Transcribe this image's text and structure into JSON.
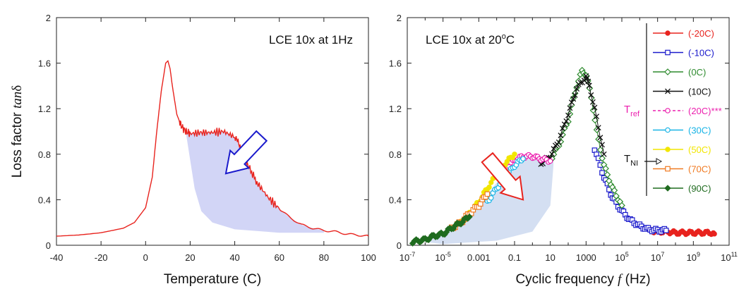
{
  "chart_data": [
    {
      "type": "line",
      "title": "LCE 10x at 1Hz",
      "xlabel": "Temperature (C)",
      "ylabel": "Loss factor tanδ",
      "ylabel_parts": {
        "text": "Loss factor ",
        "italic": "tan",
        "symbol": "δ"
      },
      "xlim": [
        -40,
        100
      ],
      "ylim": [
        0,
        2
      ],
      "x_ticks": [
        -40,
        -20,
        0,
        20,
        40,
        60,
        80,
        100
      ],
      "x_tick_labels": [
        "-40",
        "-20",
        "0",
        "20",
        "40",
        "60",
        "80",
        "100"
      ],
      "y_ticks": [
        0,
        0.4,
        0.8,
        1.2,
        1.6,
        2
      ],
      "y_tick_labels": [
        "0",
        "0.4",
        "0.8",
        "1.2",
        "1.6",
        "2"
      ],
      "series": [
        {
          "color": "#e8231e",
          "x": [
            -40,
            -30,
            -20,
            -10,
            -5,
            0,
            3,
            5,
            7,
            9,
            10,
            11,
            12,
            14,
            16,
            18,
            20,
            25,
            30,
            35,
            40,
            43,
            46,
            50,
            55,
            60,
            65,
            70,
            75,
            80,
            85,
            90,
            95,
            100
          ],
          "y": [
            0.08,
            0.09,
            0.11,
            0.15,
            0.2,
            0.33,
            0.6,
            1.0,
            1.35,
            1.6,
            1.62,
            1.55,
            1.4,
            1.15,
            1.05,
            1.0,
            0.98,
            0.99,
            0.99,
            1.0,
            0.95,
            0.85,
            0.7,
            0.55,
            0.42,
            0.32,
            0.24,
            0.18,
            0.15,
            0.13,
            0.12,
            0.1,
            0.09,
            0.08
          ]
        }
      ],
      "shaded_region": {
        "color": "#cdd0f5",
        "upper_x": [
          18,
          20,
          25,
          30,
          35,
          40,
          43,
          46,
          50,
          55,
          60,
          65,
          70,
          75,
          80
        ],
        "upper_y": [
          1.0,
          0.98,
          0.99,
          0.99,
          1.0,
          0.95,
          0.85,
          0.7,
          0.55,
          0.42,
          0.32,
          0.24,
          0.18,
          0.15,
          0.13
        ],
        "lower_x": [
          80,
          60,
          40,
          30,
          25,
          22,
          20,
          18
        ],
        "lower_y": [
          0.11,
          0.11,
          0.14,
          0.2,
          0.3,
          0.5,
          0.75,
          1.0
        ]
      },
      "annotations": [
        {
          "kind": "arrow",
          "color": "#1a1acc",
          "direction": "down-left",
          "from": [
            52,
            0.96
          ],
          "to": [
            36,
            0.63
          ]
        }
      ]
    },
    {
      "type": "scatter",
      "title": "LCE 10x at 20°C",
      "title_parts": {
        "text": "LCE 10x at 20",
        "superscript": "o",
        "suffix": "C"
      },
      "xlabel": "Cyclic frequency f (Hz)",
      "xlabel_parts": {
        "text": "Cyclic frequency ",
        "italic": "f",
        "suffix": " (Hz)"
      },
      "ylabel": "",
      "x_scale": "log",
      "xlim": [
        1e-07,
        100000000000.0
      ],
      "ylim": [
        0,
        2
      ],
      "x_tick_labels": [
        {
          "base": "10",
          "exp": "-7"
        },
        {
          "base": "10",
          "exp": "-5"
        },
        {
          "base": "0.001",
          "exp": ""
        },
        {
          "base": "0.1",
          "exp": ""
        },
        {
          "base": "10",
          "exp": ""
        },
        {
          "base": "1000",
          "exp": ""
        },
        {
          "base": "10",
          "exp": "5"
        },
        {
          "base": "10",
          "exp": "7"
        },
        {
          "base": "10",
          "exp": "9"
        },
        {
          "base": "10",
          "exp": "11"
        }
      ],
      "x_tick_values": [
        1e-07,
        1e-05,
        0.001,
        0.1,
        10,
        1000,
        100000,
        10000000,
        1000000000,
        100000000000
      ],
      "y_ticks": [
        0,
        0.4,
        0.8,
        1.2,
        1.6,
        2
      ],
      "y_tick_labels": [
        "0",
        "0.4",
        "0.8",
        "1.2",
        "1.6",
        "2"
      ],
      "legend_position": "right",
      "series": [
        {
          "name": "(-20C)",
          "color": "#e8231e",
          "marker": "circle",
          "x": [
            3000000.0,
            10000000.0,
            30000000.0,
            100000000.0,
            300000000.0,
            1000000000.0,
            3000000000.0,
            10000000000.0,
            15000000000.0
          ],
          "y": [
            0.13,
            0.12,
            0.12,
            0.11,
            0.11,
            0.11,
            0.11,
            0.11,
            0.1
          ]
        },
        {
          "name": "(-10C)",
          "color": "#1a1acc",
          "marker": "square",
          "x": [
            3000.0,
            10000.0,
            30000.0,
            100000.0,
            300000.0,
            1000000.0,
            3000000.0,
            10000000.0,
            30000000.0
          ],
          "y": [
            0.85,
            0.6,
            0.42,
            0.3,
            0.22,
            0.17,
            0.14,
            0.13,
            0.13
          ]
        },
        {
          "name": "(0C)",
          "color": "#2e8b2e",
          "marker": "diamond-open",
          "x": [
            10,
            30,
            100,
            300,
            600,
            1000,
            2000,
            4000,
            10000.0,
            30000.0,
            100000.0
          ],
          "y": [
            0.75,
            0.88,
            1.1,
            1.4,
            1.53,
            1.5,
            1.3,
            1.0,
            0.7,
            0.5,
            0.35
          ]
        },
        {
          "name": "(10C)",
          "color": "#111111",
          "marker": "x",
          "x": [
            3,
            10,
            30,
            100,
            300,
            1000,
            1500,
            3000,
            10000.0
          ],
          "y": [
            0.72,
            0.78,
            0.92,
            1.15,
            1.38,
            1.48,
            1.4,
            1.2,
            0.8
          ]
        },
        {
          "name": "(20C)***",
          "color": "#ec1fae",
          "marker": "circle-open",
          "x": [
            0.05,
            0.1,
            0.3,
            1,
            3,
            10
          ],
          "y": [
            0.7,
            0.75,
            0.78,
            0.78,
            0.76,
            0.74
          ]
        },
        {
          "name": "(30C)",
          "color": "#18b4e6",
          "marker": "circle-open",
          "x": [
            0.003,
            0.01,
            0.03,
            0.1,
            0.3
          ],
          "y": [
            0.38,
            0.5,
            0.6,
            0.7,
            0.76
          ]
        },
        {
          "name": "(50C)",
          "color": "#f2e600",
          "marker": "circle",
          "x": [
            0.0001,
            0.0003,
            0.001,
            0.003,
            0.01,
            0.03,
            0.1
          ],
          "y": [
            0.2,
            0.28,
            0.38,
            0.5,
            0.62,
            0.72,
            0.8
          ]
        },
        {
          "name": "(70C)",
          "color": "#f07a22",
          "marker": "square-open",
          "x": [
            3e-05,
            0.0001,
            0.0003,
            0.001,
            0.003
          ],
          "y": [
            0.15,
            0.2,
            0.28,
            0.35,
            0.45
          ]
        },
        {
          "name": "(90C)",
          "color": "#1f6b1f",
          "marker": "diamond",
          "x": [
            2e-07,
            1e-06,
            3e-06,
            1e-05,
            3e-05,
            0.0001,
            0.0003
          ],
          "y": [
            0.03,
            0.05,
            0.08,
            0.1,
            0.15,
            0.2,
            0.25
          ]
        }
      ],
      "shaded_region": {
        "color": "#d4dff2",
        "upper_x": [
          1e-06,
          1e-05,
          0.0001,
          0.001,
          0.01,
          0.1,
          1,
          5,
          15
        ],
        "upper_y": [
          0.03,
          0.1,
          0.2,
          0.35,
          0.55,
          0.72,
          0.77,
          0.76,
          0.75
        ],
        "lower_x": [
          15,
          10,
          1,
          0.01,
          1e-05,
          1e-06
        ],
        "lower_y": [
          0.7,
          0.35,
          0.12,
          0.04,
          0.01,
          0.03
        ]
      },
      "tref_label": {
        "text": "T",
        "sub": "ref"
      },
      "tni_label": {
        "text": "T",
        "sub": "NI"
      },
      "annotations": [
        {
          "kind": "arrow",
          "color": "#e8231e",
          "direction": "down-right",
          "from": [
            0.003,
            0.77
          ],
          "to": [
            0.3,
            0.4
          ]
        }
      ]
    }
  ]
}
